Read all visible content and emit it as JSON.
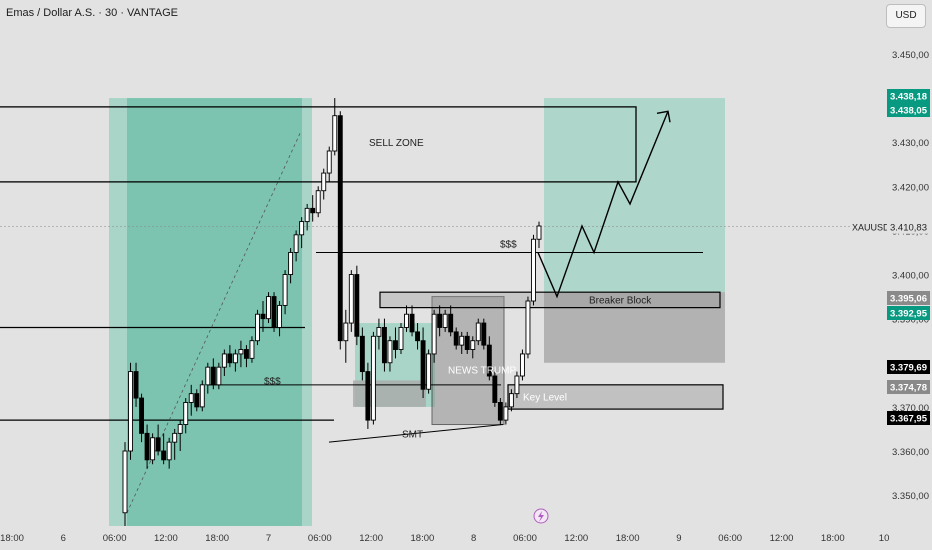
{
  "header": {
    "title": "Emas / Dollar A.S. · 30 · VANTAGE",
    "currency_label": "USD"
  },
  "colors": {
    "zone_green": "#7cc4b0",
    "zone_green_light": "#a8d5c8",
    "zone_gray": "#a9a9a9",
    "candle_up": "#ffffff",
    "candle_down": "#000000",
    "price_tag_green": "#089981",
    "price_tag_black": "#000000",
    "price_tag_gray": "#8a8a8a"
  },
  "chart_data": {
    "type": "candlestick",
    "symbol": "XAUUSD",
    "y_range": [
      3343,
      3462
    ],
    "y_ticks": [
      "3.450,00",
      "3.440,00",
      "3.430,00",
      "3.420,00",
      "3.410,00",
      "3.400,00",
      "3.390,00",
      "3.380,00",
      "3.370,00",
      "3.360,00",
      "3.350,00"
    ],
    "x_ticks": [
      "18:00",
      "6",
      "06:00",
      "12:00",
      "18:00",
      "7",
      "06:00",
      "12:00",
      "18:00",
      "8",
      "06:00",
      "12:00",
      "18:00",
      "9",
      "06:00",
      "12:00",
      "18:00",
      "10"
    ],
    "price_tags": [
      {
        "label": "3.438,18",
        "value": 3438.18,
        "style": "green"
      },
      {
        "label": "3.438,05",
        "value": 3438.05,
        "style": "green"
      },
      {
        "label": "3.395,06",
        "value": 3395.06,
        "style": "gray"
      },
      {
        "label": "3.392,95",
        "value": 3392.95,
        "style": "green"
      },
      {
        "label": "3.379,69",
        "value": 3379.69,
        "style": "black"
      },
      {
        "label": "3.374,78",
        "value": 3374.78,
        "style": "gray"
      },
      {
        "label": "3.367,95",
        "value": 3367.95,
        "style": "black"
      }
    ],
    "current_price": {
      "label": "3.410,83",
      "value": 3410.83,
      "symbol_label": "XAUUSD"
    },
    "annotations": [
      "SELL ZONE",
      "$$$",
      "$$$",
      "Breaker Block",
      "NEWS TRUMP",
      "Key Level",
      "SMT"
    ],
    "candles": [
      {
        "o": 3346,
        "h": 3362,
        "l": 3343,
        "c": 3360
      },
      {
        "o": 3360,
        "h": 3380,
        "l": 3358,
        "c": 3378
      },
      {
        "o": 3378,
        "h": 3380,
        "l": 3370,
        "c": 3372
      },
      {
        "o": 3372,
        "h": 3373,
        "l": 3362,
        "c": 3364
      },
      {
        "o": 3364,
        "h": 3366,
        "l": 3356,
        "c": 3358
      },
      {
        "o": 3358,
        "h": 3364,
        "l": 3357,
        "c": 3363
      },
      {
        "o": 3363,
        "h": 3366,
        "l": 3359,
        "c": 3360
      },
      {
        "o": 3360,
        "h": 3364,
        "l": 3357,
        "c": 3358
      },
      {
        "o": 3358,
        "h": 3363,
        "l": 3356,
        "c": 3362
      },
      {
        "o": 3362,
        "h": 3365,
        "l": 3358,
        "c": 3364
      },
      {
        "o": 3364,
        "h": 3367,
        "l": 3360,
        "c": 3366
      },
      {
        "o": 3366,
        "h": 3372,
        "l": 3364,
        "c": 3371
      },
      {
        "o": 3371,
        "h": 3375,
        "l": 3368,
        "c": 3373
      },
      {
        "o": 3373,
        "h": 3374,
        "l": 3369,
        "c": 3370
      },
      {
        "o": 3370,
        "h": 3376,
        "l": 3369,
        "c": 3375
      },
      {
        "o": 3375,
        "h": 3380,
        "l": 3373,
        "c": 3379
      },
      {
        "o": 3379,
        "h": 3381,
        "l": 3374,
        "c": 3375
      },
      {
        "o": 3375,
        "h": 3380,
        "l": 3374,
        "c": 3379
      },
      {
        "o": 3379,
        "h": 3383,
        "l": 3377,
        "c": 3382
      },
      {
        "o": 3382,
        "h": 3384,
        "l": 3379,
        "c": 3380
      },
      {
        "o": 3380,
        "h": 3383,
        "l": 3378,
        "c": 3382
      },
      {
        "o": 3382,
        "h": 3385,
        "l": 3379,
        "c": 3383
      },
      {
        "o": 3383,
        "h": 3384,
        "l": 3379,
        "c": 3381
      },
      {
        "o": 3381,
        "h": 3386,
        "l": 3380,
        "c": 3385
      },
      {
        "o": 3385,
        "h": 3392,
        "l": 3384,
        "c": 3391
      },
      {
        "o": 3391,
        "h": 3394,
        "l": 3387,
        "c": 3390
      },
      {
        "o": 3390,
        "h": 3396,
        "l": 3389,
        "c": 3395
      },
      {
        "o": 3395,
        "h": 3396,
        "l": 3387,
        "c": 3388
      },
      {
        "o": 3388,
        "h": 3394,
        "l": 3386,
        "c": 3393
      },
      {
        "o": 3393,
        "h": 3401,
        "l": 3391,
        "c": 3400
      },
      {
        "o": 3400,
        "h": 3406,
        "l": 3398,
        "c": 3405
      },
      {
        "o": 3405,
        "h": 3410,
        "l": 3403,
        "c": 3409
      },
      {
        "o": 3409,
        "h": 3413,
        "l": 3406,
        "c": 3412
      },
      {
        "o": 3412,
        "h": 3416,
        "l": 3410,
        "c": 3415
      },
      {
        "o": 3415,
        "h": 3418,
        "l": 3412,
        "c": 3414
      },
      {
        "o": 3414,
        "h": 3420,
        "l": 3413,
        "c": 3419
      },
      {
        "o": 3419,
        "h": 3424,
        "l": 3417,
        "c": 3423
      },
      {
        "o": 3423,
        "h": 3429,
        "l": 3421,
        "c": 3428
      },
      {
        "o": 3428,
        "h": 3440,
        "l": 3427,
        "c": 3436
      },
      {
        "o": 3436,
        "h": 3437,
        "l": 3383,
        "c": 3385
      },
      {
        "o": 3385,
        "h": 3392,
        "l": 3380,
        "c": 3389
      },
      {
        "o": 3389,
        "h": 3401,
        "l": 3387,
        "c": 3400
      },
      {
        "o": 3400,
        "h": 3402,
        "l": 3384,
        "c": 3386
      },
      {
        "o": 3386,
        "h": 3388,
        "l": 3376,
        "c": 3378
      },
      {
        "o": 3378,
        "h": 3380,
        "l": 3365,
        "c": 3367
      },
      {
        "o": 3367,
        "h": 3387,
        "l": 3366,
        "c": 3386
      },
      {
        "o": 3386,
        "h": 3390,
        "l": 3383,
        "c": 3388
      },
      {
        "o": 3388,
        "h": 3390,
        "l": 3378,
        "c": 3380
      },
      {
        "o": 3380,
        "h": 3386,
        "l": 3378,
        "c": 3385
      },
      {
        "o": 3385,
        "h": 3388,
        "l": 3381,
        "c": 3383
      },
      {
        "o": 3383,
        "h": 3389,
        "l": 3382,
        "c": 3388
      },
      {
        "o": 3388,
        "h": 3393,
        "l": 3387,
        "c": 3391
      },
      {
        "o": 3391,
        "h": 3393,
        "l": 3386,
        "c": 3387
      },
      {
        "o": 3387,
        "h": 3389,
        "l": 3383,
        "c": 3385
      },
      {
        "o": 3385,
        "h": 3388,
        "l": 3372,
        "c": 3374
      },
      {
        "o": 3374,
        "h": 3383,
        "l": 3373,
        "c": 3382
      },
      {
        "o": 3382,
        "h": 3392,
        "l": 3380,
        "c": 3391
      },
      {
        "o": 3391,
        "h": 3393,
        "l": 3386,
        "c": 3388
      },
      {
        "o": 3388,
        "h": 3392,
        "l": 3387,
        "c": 3391
      },
      {
        "o": 3391,
        "h": 3393,
        "l": 3386,
        "c": 3387
      },
      {
        "o": 3387,
        "h": 3388,
        "l": 3383,
        "c": 3384
      },
      {
        "o": 3384,
        "h": 3387,
        "l": 3382,
        "c": 3386
      },
      {
        "o": 3386,
        "h": 3387,
        "l": 3382,
        "c": 3383
      },
      {
        "o": 3383,
        "h": 3386,
        "l": 3381,
        "c": 3385
      },
      {
        "o": 3385,
        "h": 3390,
        "l": 3384,
        "c": 3389
      },
      {
        "o": 3389,
        "h": 3390,
        "l": 3383,
        "c": 3384
      },
      {
        "o": 3384,
        "h": 3386,
        "l": 3376,
        "c": 3377
      },
      {
        "o": 3377,
        "h": 3378,
        "l": 3370,
        "c": 3371
      },
      {
        "o": 3371,
        "h": 3372,
        "l": 3366,
        "c": 3367
      },
      {
        "o": 3367,
        "h": 3371,
        "l": 3366,
        "c": 3370
      },
      {
        "o": 3370,
        "h": 3374,
        "l": 3369,
        "c": 3373
      },
      {
        "o": 3373,
        "h": 3378,
        "l": 3372,
        "c": 3377
      },
      {
        "o": 3377,
        "h": 3383,
        "l": 3376,
        "c": 3382
      },
      {
        "o": 3382,
        "h": 3395,
        "l": 3381,
        "c": 3394
      },
      {
        "o": 3394,
        "h": 3409,
        "l": 3393,
        "c": 3408
      },
      {
        "o": 3408,
        "h": 3412,
        "l": 3406,
        "c": 3411
      }
    ]
  }
}
